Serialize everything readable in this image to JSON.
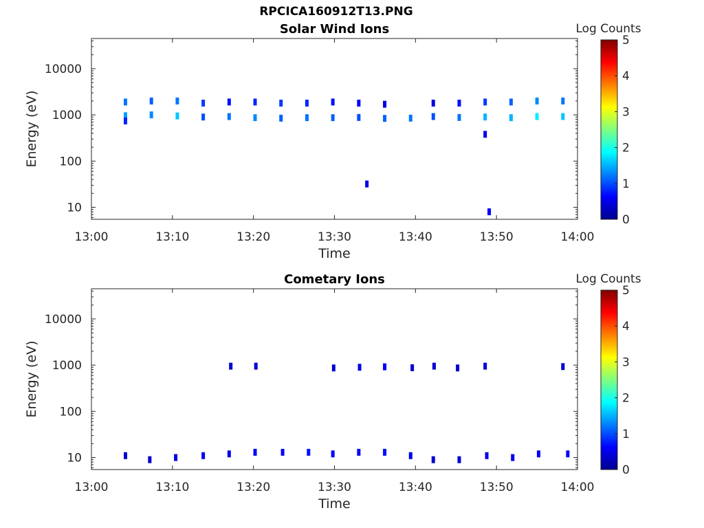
{
  "figure": {
    "title": "RPCICA160912T13.PNG"
  },
  "colorbar": {
    "label": "Log Counts",
    "ticks": [
      "0",
      "1",
      "2",
      "3",
      "4",
      "5"
    ],
    "range": [
      0,
      5
    ],
    "colormap": "jet"
  },
  "chart_data": [
    {
      "type": "heatmap",
      "title": "Solar Wind Ions",
      "xlabel": "Time",
      "ylabel": "Energy (eV)",
      "xticks": [
        "13:00",
        "13:10",
        "13:20",
        "13:30",
        "13:40",
        "13:50",
        "14:00"
      ],
      "yticks": [
        "10",
        "100",
        "1000",
        "10000"
      ],
      "xlim": [
        "13:00",
        "14:00"
      ],
      "ylim": [
        5.5,
        45000
      ],
      "yscale": "log",
      "color_scale": "log counts 0-5",
      "cells": [
        {
          "time": "13:04.2",
          "energy": 1900,
          "value": 1.2
        },
        {
          "time": "13:04.2",
          "energy": 960,
          "value": 1.4
        },
        {
          "time": "13:04.2",
          "energy": 740,
          "value": 0.8
        },
        {
          "time": "13:07.4",
          "energy": 2000,
          "value": 1.1
        },
        {
          "time": "13:07.4",
          "energy": 1000,
          "value": 1.3
        },
        {
          "time": "13:10.6",
          "energy": 2000,
          "value": 1.2
        },
        {
          "time": "13:10.6",
          "energy": 950,
          "value": 1.6
        },
        {
          "time": "13:13.8",
          "energy": 1800,
          "value": 0.9
        },
        {
          "time": "13:13.8",
          "energy": 900,
          "value": 1.0
        },
        {
          "time": "13:17.0",
          "energy": 1900,
          "value": 0.7
        },
        {
          "time": "13:17.0",
          "energy": 920,
          "value": 1.2
        },
        {
          "time": "13:20.2",
          "energy": 1900,
          "value": 0.8
        },
        {
          "time": "13:20.2",
          "energy": 870,
          "value": 1.3
        },
        {
          "time": "13:23.4",
          "energy": 1800,
          "value": 0.9
        },
        {
          "time": "13:23.4",
          "energy": 850,
          "value": 1.1
        },
        {
          "time": "13:26.6",
          "energy": 1800,
          "value": 0.8
        },
        {
          "time": "13:26.6",
          "energy": 870,
          "value": 1.2
        },
        {
          "time": "13:29.8",
          "energy": 1900,
          "value": 0.7
        },
        {
          "time": "13:29.8",
          "energy": 870,
          "value": 1.1
        },
        {
          "time": "13:33.0",
          "energy": 1800,
          "value": 0.6
        },
        {
          "time": "13:33.0",
          "energy": 880,
          "value": 1.0
        },
        {
          "time": "13:34.0",
          "energy": 32,
          "value": 0.5
        },
        {
          "time": "13:36.2",
          "energy": 1700,
          "value": 0.5
        },
        {
          "time": "13:36.2",
          "energy": 840,
          "value": 1.1
        },
        {
          "time": "13:39.4",
          "energy": 850,
          "value": 1.2
        },
        {
          "time": "13:42.2",
          "energy": 1800,
          "value": 0.5
        },
        {
          "time": "13:42.2",
          "energy": 920,
          "value": 1.0
        },
        {
          "time": "13:45.4",
          "energy": 1800,
          "value": 0.7
        },
        {
          "time": "13:45.4",
          "energy": 880,
          "value": 1.2
        },
        {
          "time": "13:48.6",
          "energy": 1900,
          "value": 0.9
        },
        {
          "time": "13:48.6",
          "energy": 900,
          "value": 1.5
        },
        {
          "time": "13:48.6",
          "energy": 380,
          "value": 0.5
        },
        {
          "time": "13:49.1",
          "energy": 8,
          "value": 0.6
        },
        {
          "time": "13:51.8",
          "energy": 1900,
          "value": 1.1
        },
        {
          "time": "13:51.8",
          "energy": 870,
          "value": 1.5
        },
        {
          "time": "13:55.0",
          "energy": 2000,
          "value": 1.3
        },
        {
          "time": "13:55.0",
          "energy": 920,
          "value": 1.8
        },
        {
          "time": "13:58.2",
          "energy": 2000,
          "value": 1.2
        },
        {
          "time": "13:58.2",
          "energy": 920,
          "value": 1.6
        }
      ]
    },
    {
      "type": "heatmap",
      "title": "Cometary Ions",
      "xlabel": "Time",
      "ylabel": "Energy (eV)",
      "xticks": [
        "13:00",
        "13:10",
        "13:20",
        "13:30",
        "13:40",
        "13:50",
        "14:00"
      ],
      "yticks": [
        "10",
        "100",
        "1000",
        "10000"
      ],
      "xlim": [
        "13:00",
        "14:00"
      ],
      "ylim": [
        5.5,
        45000
      ],
      "yscale": "log",
      "color_scale": "log counts 0-5",
      "cells": [
        {
          "time": "13:04.2",
          "energy": 11,
          "value": 0.4
        },
        {
          "time": "13:07.2",
          "energy": 9,
          "value": 0.4
        },
        {
          "time": "13:10.4",
          "energy": 10,
          "value": 0.5
        },
        {
          "time": "13:13.8",
          "energy": 11,
          "value": 0.6
        },
        {
          "time": "13:17.0",
          "energy": 12,
          "value": 0.5
        },
        {
          "time": "13:17.2",
          "energy": 950,
          "value": 0.4
        },
        {
          "time": "13:20.2",
          "energy": 13,
          "value": 0.6
        },
        {
          "time": "13:20.3",
          "energy": 950,
          "value": 0.4
        },
        {
          "time": "13:23.6",
          "energy": 13,
          "value": 0.6
        },
        {
          "time": "13:26.8",
          "energy": 13,
          "value": 0.7
        },
        {
          "time": "13:29.8",
          "energy": 12,
          "value": 0.6
        },
        {
          "time": "13:29.9",
          "energy": 870,
          "value": 0.4
        },
        {
          "time": "13:33.0",
          "energy": 13,
          "value": 0.6
        },
        {
          "time": "13:33.1",
          "energy": 900,
          "value": 0.5
        },
        {
          "time": "13:36.2",
          "energy": 13,
          "value": 0.7
        },
        {
          "time": "13:36.2",
          "energy": 920,
          "value": 0.6
        },
        {
          "time": "13:39.4",
          "energy": 11,
          "value": 0.5
        },
        {
          "time": "13:39.6",
          "energy": 880,
          "value": 0.4
        },
        {
          "time": "13:42.2",
          "energy": 9,
          "value": 0.4
        },
        {
          "time": "13:42.3",
          "energy": 950,
          "value": 0.4
        },
        {
          "time": "13:45.4",
          "energy": 9,
          "value": 0.4
        },
        {
          "time": "13:45.2",
          "energy": 870,
          "value": 0.4
        },
        {
          "time": "13:48.6",
          "energy": 950,
          "value": 0.4
        },
        {
          "time": "13:48.8",
          "energy": 11,
          "value": 0.5
        },
        {
          "time": "13:52.0",
          "energy": 10,
          "value": 0.5
        },
        {
          "time": "13:55.2",
          "energy": 12,
          "value": 0.6
        },
        {
          "time": "13:58.2",
          "energy": 930,
          "value": 0.4
        },
        {
          "time": "13:58.8",
          "energy": 12,
          "value": 0.6
        }
      ]
    }
  ]
}
